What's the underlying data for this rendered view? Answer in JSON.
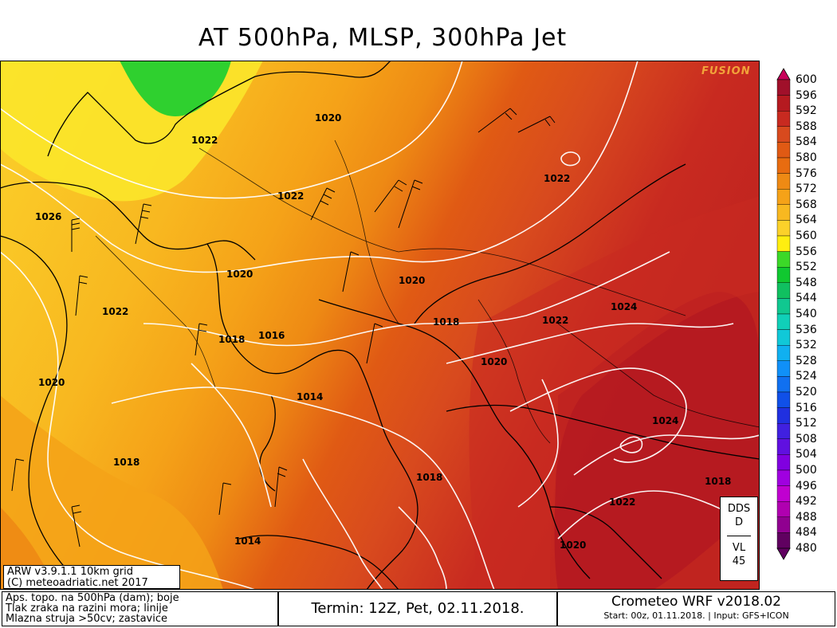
{
  "title": "AT 500hPa, MLSP, 300hPa Jet",
  "watermark": "FUSION",
  "legend": {
    "labels": [
      "600",
      "596",
      "592",
      "588",
      "584",
      "580",
      "576",
      "572",
      "568",
      "564",
      "560",
      "556",
      "552",
      "548",
      "544",
      "540",
      "536",
      "532",
      "528",
      "524",
      "520",
      "516",
      "512",
      "508",
      "504",
      "500",
      "496",
      "492",
      "488",
      "484",
      "480"
    ],
    "colors": [
      "#c8005a",
      "#a0102a",
      "#b51a20",
      "#c82a20",
      "#d84a1e",
      "#e05a14",
      "#e86c10",
      "#ee8a14",
      "#f5a218",
      "#f8b820",
      "#fbd12a",
      "#ffee10",
      "#3cd828",
      "#10c830",
      "#10c060",
      "#10c890",
      "#10d0b8",
      "#10c8d8",
      "#10b0f0",
      "#1090f8",
      "#1070f0",
      "#1050e8",
      "#2030e0",
      "#4020e0",
      "#6010e0",
      "#8000e0",
      "#a000e0",
      "#c000d0",
      "#b000b0",
      "#900090",
      "#600060"
    ]
  },
  "isobar_labels": [
    {
      "text": "1020",
      "pos": "Germany north"
    },
    {
      "text": "1022",
      "pos": "Belgium"
    },
    {
      "text": "1022",
      "pos": "Germany"
    },
    {
      "text": "1026",
      "pos": "Bay of Biscay"
    },
    {
      "text": "1022",
      "pos": "Poland east"
    },
    {
      "text": "1020",
      "pos": "Switzerland"
    },
    {
      "text": "1020",
      "pos": "Slovenia"
    },
    {
      "text": "1024",
      "pos": "Romania"
    },
    {
      "text": "1022",
      "pos": "France"
    },
    {
      "text": "1018",
      "pos": "French Alps"
    },
    {
      "text": "1016",
      "pos": "Gulf of Genoa"
    },
    {
      "text": "1018",
      "pos": "Adriatic"
    },
    {
      "text": "1022",
      "pos": "Serbia"
    },
    {
      "text": "1020",
      "pos": "Iberia north"
    },
    {
      "text": "1020",
      "pos": "Montenegro"
    },
    {
      "text": "1014",
      "pos": "Corsica"
    },
    {
      "text": "1024",
      "pos": "Bulgaria"
    },
    {
      "text": "1018",
      "pos": "Iberia"
    },
    {
      "text": "1018",
      "pos": "Italy south"
    },
    {
      "text": "1022",
      "pos": "Greece"
    },
    {
      "text": "1018",
      "pos": "Aegean east"
    },
    {
      "text": "1014",
      "pos": "Algeria"
    },
    {
      "text": "1020",
      "pos": "Ionian Sea"
    }
  ],
  "model_box": {
    "line1": "ARW v3.9.1.1 10km grid",
    "line2": "(C) meteoadriatic.net 2017"
  },
  "dds_box": {
    "l1": "DDS",
    "l2": "D",
    "l3": "VL",
    "l4": "45"
  },
  "footer": {
    "desc1": "Aps. topo. na 500hPa (dam); boje",
    "desc2": "Tlak zraka na razini mora; linije",
    "desc3": "Mlazna struja >50cv; zastavice",
    "term": "Termin: 12Z, Pet, 02.11.2018.",
    "wrf1": "Crometeo WRF v2018.02",
    "wrf2": "Start: 00z, 01.11.2018. | Input: GFS+ICON"
  }
}
